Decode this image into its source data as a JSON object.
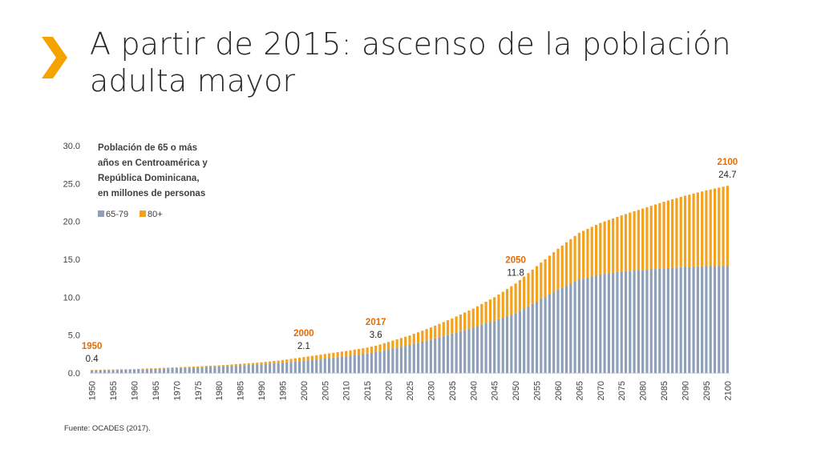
{
  "slide": {
    "title": "A partir de 2015: ascenso de la población adulta mayor",
    "source": "Fuente: OCADES (2017)."
  },
  "colors": {
    "accent": "#F5A300",
    "series_65_79": "#8EA0B8",
    "series_80_plus": "#F4A11B",
    "annotation_year": "#E36C09"
  },
  "chart_data": {
    "type": "bar",
    "stacked": true,
    "title": "Población de 65 o más años en Centroamérica y República Dominicana, en millones de personas",
    "title_lines": [
      "Población de 65 o más",
      "años en Centroamérica y",
      "República Dominicana,",
      "en millones de personas"
    ],
    "xlabel": "",
    "ylabel": "",
    "ylim": [
      0,
      30
    ],
    "yticks": [
      "0.0",
      "5.0",
      "10.0",
      "15.0",
      "20.0",
      "25.0",
      "30.0"
    ],
    "ytick_values": [
      0,
      5,
      10,
      15,
      20,
      25,
      30
    ],
    "x_start": 1950,
    "x_end": 2100,
    "xtick_labels": [
      "1950",
      "1955",
      "1960",
      "1965",
      "1970",
      "1975",
      "1980",
      "1985",
      "1990",
      "1995",
      "2000",
      "2005",
      "2010",
      "2015",
      "2020",
      "2025",
      "2030",
      "2035",
      "2040",
      "2045",
      "2050",
      "2055",
      "2060",
      "2065",
      "2070",
      "2075",
      "2080",
      "2085",
      "2090",
      "2095",
      "2100"
    ],
    "legend": [
      "65-79",
      "80+"
    ],
    "legend_position": "top-left",
    "series": [
      {
        "name": "65-79",
        "x": [
          1950,
          1955,
          1960,
          1965,
          1970,
          1975,
          1980,
          1985,
          1990,
          1995,
          2000,
          2005,
          2010,
          2015,
          2017,
          2020,
          2025,
          2030,
          2035,
          2040,
          2045,
          2050,
          2055,
          2060,
          2065,
          2070,
          2075,
          2080,
          2085,
          2090,
          2095,
          2100
        ],
        "values": [
          0.35,
          0.4,
          0.45,
          0.55,
          0.65,
          0.75,
          0.85,
          1.0,
          1.15,
          1.35,
          1.6,
          1.9,
          2.2,
          2.55,
          2.75,
          3.1,
          3.7,
          4.4,
          5.2,
          6.0,
          6.9,
          7.9,
          9.4,
          11.0,
          12.3,
          13.0,
          13.4,
          13.6,
          13.8,
          14.0,
          14.1,
          14.1
        ]
      },
      {
        "name": "80+",
        "x": [
          1950,
          1955,
          1960,
          1965,
          1970,
          1975,
          1980,
          1985,
          1990,
          1995,
          2000,
          2005,
          2010,
          2015,
          2017,
          2020,
          2025,
          2030,
          2035,
          2040,
          2045,
          2050,
          2055,
          2060,
          2065,
          2070,
          2075,
          2080,
          2085,
          2090,
          2095,
          2100
        ],
        "values": [
          0.05,
          0.06,
          0.07,
          0.08,
          0.1,
          0.12,
          0.15,
          0.2,
          0.25,
          0.35,
          0.5,
          0.6,
          0.7,
          0.8,
          0.85,
          1.0,
          1.25,
          1.6,
          2.0,
          2.5,
          3.1,
          3.9,
          4.7,
          5.4,
          6.2,
          6.8,
          7.4,
          8.1,
          8.8,
          9.4,
          10.0,
          10.6
        ]
      }
    ],
    "annotations": [
      {
        "year": "1950",
        "value": "0.4"
      },
      {
        "year": "2000",
        "value": "2.1"
      },
      {
        "year": "2017",
        "value": "3.6"
      },
      {
        "year": "2050",
        "value": "11.8"
      },
      {
        "year": "2100",
        "value": "24.7"
      }
    ]
  }
}
